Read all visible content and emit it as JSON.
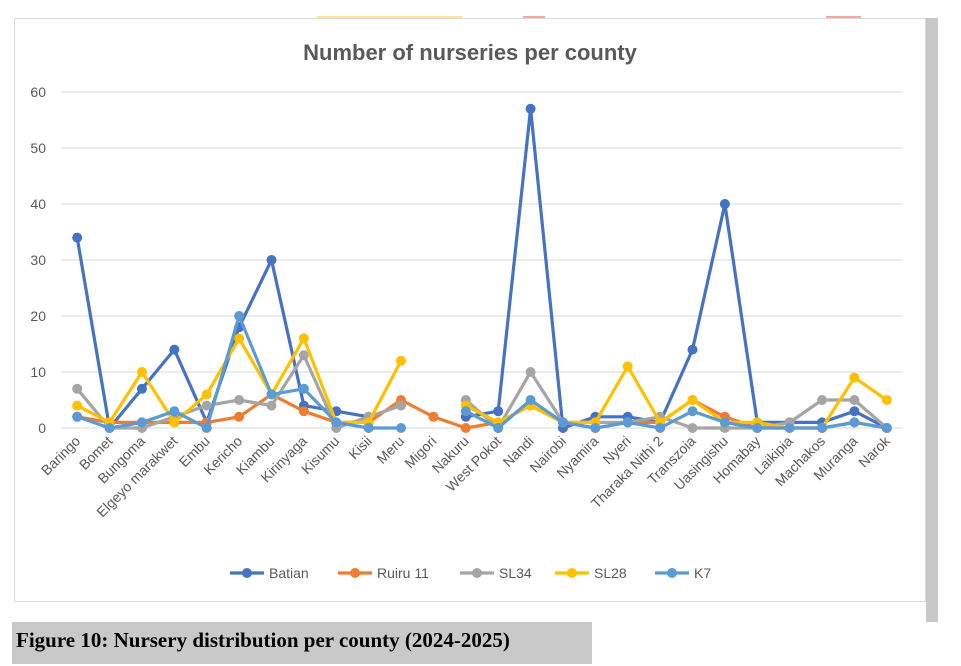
{
  "caption": "Figure 10: Nursery distribution per county (2024-2025)",
  "chart_data": {
    "type": "line",
    "title": "Number of nurseries per county",
    "xlabel": "",
    "ylabel": "",
    "ylim": [
      0,
      60
    ],
    "yticks": [
      0,
      10,
      20,
      30,
      40,
      50,
      60
    ],
    "grid": true,
    "legend": "bottom",
    "categories": [
      "Baringo",
      "Bomet",
      "Bungoma",
      "Elgeyo marakwet",
      "Embu",
      "Kericho",
      "Kiambu",
      "Kirinyaga",
      "Kisumu",
      "Kisii",
      "Meru",
      "Migori",
      "Nakuru",
      "West Pokot",
      "Nandi",
      "Nairobi",
      "Nyamira",
      "Nyeri",
      "Tharaka Nithi 2",
      "Transzoia",
      "Uasingishu",
      "Homabay",
      "Laikipia",
      "Machakos",
      "Muranga",
      "Narok"
    ],
    "series": [
      {
        "name": "Batian",
        "color": "#4472c4",
        "values": [
          34,
          0,
          7,
          14,
          1,
          18,
          30,
          4,
          3,
          2,
          null,
          null,
          2,
          3,
          57,
          0,
          2,
          2,
          1,
          14,
          40,
          1,
          1,
          1,
          3,
          0
        ]
      },
      {
        "name": "Ruiru 11",
        "color": "#ed7d31",
        "values": [
          2,
          1,
          1,
          1,
          1,
          2,
          6,
          3,
          1,
          1,
          5,
          2,
          0,
          1,
          4,
          1,
          0,
          1,
          1,
          5,
          2,
          0,
          0,
          0,
          1,
          0
        ]
      },
      {
        "name": "SL34",
        "color": "#a5a5a5",
        "values": [
          7,
          0,
          0,
          2,
          4,
          5,
          4,
          13,
          0,
          2,
          4,
          null,
          5,
          0,
          10,
          1,
          1,
          1,
          2,
          0,
          0,
          0,
          1,
          5,
          5,
          0
        ]
      },
      {
        "name": "SL28",
        "color": "#ffc000",
        "values": [
          4,
          1,
          10,
          1,
          6,
          16,
          6,
          16,
          1,
          1,
          12,
          null,
          4,
          1,
          4,
          1,
          1,
          11,
          1,
          5,
          1,
          1,
          0,
          0,
          9,
          5
        ]
      },
      {
        "name": "K7",
        "color": "#5b9bd5",
        "values": [
          2,
          0,
          1,
          3,
          0,
          20,
          6,
          7,
          1,
          0,
          0,
          null,
          3,
          0,
          5,
          1,
          0,
          1,
          0,
          3,
          1,
          0,
          0,
          0,
          1,
          0
        ]
      }
    ]
  },
  "colors": {
    "top_mark_yellow": "#ffe699",
    "top_mark_red": "#f4a6a6",
    "caption_bg": "#c9c9c9",
    "grid": "#d9d9d9"
  }
}
